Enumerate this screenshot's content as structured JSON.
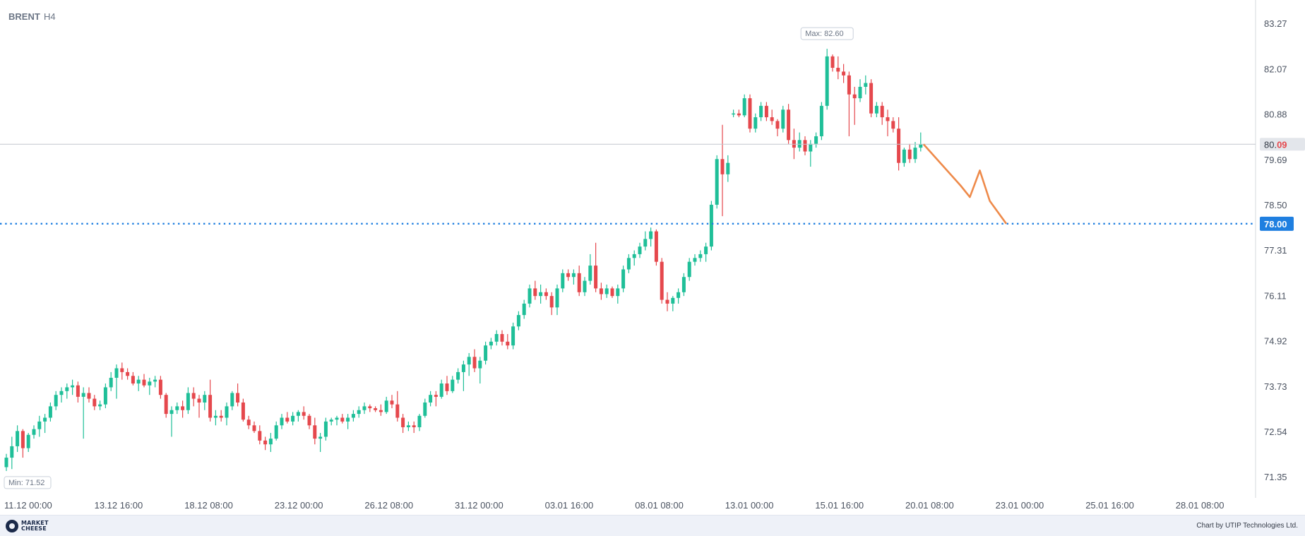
{
  "chart_data": {
    "type": "candlestick",
    "title": "BRENT",
    "timeframe": "H4",
    "y_axis": {
      "ticks": [
        "83.27",
        "82.07",
        "80.88",
        "79.69",
        "78.50",
        "77.31",
        "76.11",
        "74.92",
        "73.73",
        "72.54",
        "71.35"
      ],
      "range": [
        70.9,
        83.7
      ]
    },
    "x_axis": {
      "ticks": [
        "11.12 00:00",
        "13.12 16:00",
        "18.12 08:00",
        "23.12 00:00",
        "26.12 08:00",
        "31.12 00:00",
        "03.01 16:00",
        "08.01 08:00",
        "13.01 00:00",
        "15.01 16:00",
        "20.01 08:00",
        "23.01 00:00",
        "25.01 16:00",
        "28.01 08:00"
      ]
    },
    "current_price": {
      "label_prefix": "80.",
      "label_suffix": "09",
      "value": 80.09
    },
    "target_level": {
      "label": "78.00",
      "value": 78.0
    },
    "max_label": "Max: 82.60",
    "min_label": "Min: 71.52",
    "forecast_path": [
      [
        80.09,
        0
      ],
      [
        79.0,
        0.45
      ],
      [
        78.7,
        0.56
      ],
      [
        79.4,
        0.68
      ],
      [
        78.6,
        0.8
      ],
      [
        78.0,
        1.0
      ]
    ],
    "colors": {
      "up": "#1fbf98",
      "down": "#e5484d",
      "target": "#1f7fe0",
      "forecast": "#ee8a4a",
      "grid": "#d6d9de"
    },
    "candles": [
      [
        71.6,
        71.95,
        71.5,
        71.85
      ],
      [
        71.85,
        72.4,
        71.55,
        72.15
      ],
      [
        72.15,
        72.7,
        72.0,
        72.55
      ],
      [
        72.55,
        72.6,
        71.85,
        72.1
      ],
      [
        72.1,
        72.5,
        72.0,
        72.45
      ],
      [
        72.45,
        72.7,
        72.35,
        72.6
      ],
      [
        72.6,
        72.95,
        72.4,
        72.8
      ],
      [
        72.8,
        73.0,
        72.5,
        72.9
      ],
      [
        72.9,
        73.3,
        72.8,
        73.2
      ],
      [
        73.2,
        73.6,
        73.1,
        73.5
      ],
      [
        73.5,
        73.7,
        73.3,
        73.6
      ],
      [
        73.6,
        73.8,
        73.4,
        73.7
      ],
      [
        73.7,
        73.9,
        73.5,
        73.75
      ],
      [
        73.75,
        73.85,
        73.3,
        73.45
      ],
      [
        73.45,
        73.7,
        72.35,
        73.55
      ],
      [
        73.55,
        73.7,
        73.3,
        73.4
      ],
      [
        73.4,
        73.5,
        73.1,
        73.2
      ],
      [
        73.2,
        73.35,
        73.1,
        73.25
      ],
      [
        73.25,
        73.8,
        73.15,
        73.7
      ],
      [
        73.7,
        74.1,
        73.6,
        73.95
      ],
      [
        73.95,
        74.3,
        73.4,
        74.2
      ],
      [
        74.2,
        74.35,
        73.9,
        74.1
      ],
      [
        74.1,
        74.2,
        73.9,
        74.0
      ],
      [
        74.0,
        74.1,
        73.75,
        73.8
      ],
      [
        73.8,
        74.0,
        73.6,
        73.9
      ],
      [
        73.9,
        74.05,
        73.7,
        73.75
      ],
      [
        73.75,
        73.95,
        73.5,
        73.85
      ],
      [
        73.85,
        74.0,
        73.7,
        73.9
      ],
      [
        73.9,
        74.0,
        73.4,
        73.5
      ],
      [
        73.5,
        73.55,
        72.9,
        73.0
      ],
      [
        73.0,
        73.2,
        72.4,
        73.1
      ],
      [
        73.1,
        73.3,
        73.0,
        73.2
      ],
      [
        73.2,
        73.35,
        72.9,
        73.1
      ],
      [
        73.1,
        73.7,
        73.0,
        73.55
      ],
      [
        73.55,
        73.7,
        73.2,
        73.4
      ],
      [
        73.4,
        73.5,
        72.9,
        73.3
      ],
      [
        73.3,
        73.6,
        73.1,
        73.5
      ],
      [
        73.5,
        73.9,
        72.8,
        72.9
      ],
      [
        72.9,
        73.1,
        72.7,
        72.95
      ],
      [
        72.95,
        73.1,
        72.8,
        72.9
      ],
      [
        72.9,
        73.3,
        72.7,
        73.2
      ],
      [
        73.2,
        73.6,
        73.1,
        73.55
      ],
      [
        73.55,
        73.8,
        73.2,
        73.3
      ],
      [
        73.3,
        73.4,
        72.8,
        72.85
      ],
      [
        72.85,
        72.95,
        72.6,
        72.7
      ],
      [
        72.7,
        72.8,
        72.5,
        72.55
      ],
      [
        72.55,
        72.7,
        72.2,
        72.3
      ],
      [
        72.3,
        72.4,
        72.05,
        72.2
      ],
      [
        72.2,
        72.5,
        72.0,
        72.35
      ],
      [
        72.35,
        72.8,
        72.3,
        72.7
      ],
      [
        72.7,
        73.0,
        72.6,
        72.9
      ],
      [
        72.9,
        73.05,
        72.75,
        72.8
      ],
      [
        72.8,
        73.05,
        72.7,
        72.95
      ],
      [
        72.95,
        73.1,
        72.8,
        73.05
      ],
      [
        73.05,
        73.2,
        72.85,
        72.95
      ],
      [
        72.95,
        73.0,
        72.6,
        72.7
      ],
      [
        72.7,
        72.9,
        72.2,
        72.35
      ],
      [
        72.35,
        72.5,
        72.0,
        72.4
      ],
      [
        72.4,
        72.9,
        72.3,
        72.8
      ],
      [
        72.8,
        72.9,
        72.7,
        72.85
      ],
      [
        72.85,
        72.95,
        72.7,
        72.9
      ],
      [
        72.9,
        73.0,
        72.75,
        72.8
      ],
      [
        72.8,
        73.0,
        72.6,
        72.9
      ],
      [
        72.9,
        73.1,
        72.8,
        73.0
      ],
      [
        73.0,
        73.2,
        72.9,
        73.1
      ],
      [
        73.1,
        73.3,
        73.0,
        73.2
      ],
      [
        73.2,
        73.25,
        73.05,
        73.15
      ],
      [
        73.15,
        73.2,
        73.05,
        73.1
      ],
      [
        73.1,
        73.25,
        72.95,
        73.05
      ],
      [
        73.05,
        73.45,
        73.0,
        73.35
      ],
      [
        73.35,
        73.5,
        73.15,
        73.25
      ],
      [
        73.25,
        73.6,
        72.8,
        72.9
      ],
      [
        72.9,
        73.0,
        72.5,
        72.65
      ],
      [
        72.65,
        72.8,
        72.55,
        72.7
      ],
      [
        72.7,
        72.8,
        72.5,
        72.65
      ],
      [
        72.65,
        73.0,
        72.55,
        72.95
      ],
      [
        72.95,
        73.4,
        72.9,
        73.3
      ],
      [
        73.3,
        73.6,
        73.2,
        73.5
      ],
      [
        73.5,
        73.6,
        73.2,
        73.45
      ],
      [
        73.45,
        73.9,
        73.4,
        73.8
      ],
      [
        73.8,
        74.0,
        73.5,
        73.6
      ],
      [
        73.6,
        74.0,
        73.55,
        73.9
      ],
      [
        73.9,
        74.2,
        73.8,
        74.1
      ],
      [
        74.1,
        74.4,
        73.6,
        74.3
      ],
      [
        74.3,
        74.6,
        74.0,
        74.5
      ],
      [
        74.5,
        74.7,
        74.1,
        74.2
      ],
      [
        74.2,
        74.5,
        73.8,
        74.4
      ],
      [
        74.4,
        74.9,
        74.3,
        74.8
      ],
      [
        74.8,
        75.0,
        74.7,
        74.9
      ],
      [
        74.9,
        75.2,
        74.8,
        75.1
      ],
      [
        75.1,
        75.2,
        74.8,
        74.9
      ],
      [
        74.9,
        75.1,
        74.7,
        74.8
      ],
      [
        74.8,
        75.4,
        74.7,
        75.3
      ],
      [
        75.3,
        75.7,
        75.2,
        75.6
      ],
      [
        75.6,
        76.0,
        75.5,
        75.9
      ],
      [
        75.9,
        76.4,
        75.8,
        76.3
      ],
      [
        76.3,
        76.5,
        76.0,
        76.1
      ],
      [
        76.1,
        76.4,
        75.9,
        76.2
      ],
      [
        76.2,
        76.3,
        76.0,
        76.1
      ],
      [
        76.1,
        76.2,
        75.6,
        75.8
      ],
      [
        75.8,
        76.4,
        75.6,
        76.3
      ],
      [
        76.3,
        76.8,
        76.2,
        76.7
      ],
      [
        76.7,
        76.8,
        76.5,
        76.6
      ],
      [
        76.6,
        76.8,
        76.4,
        76.7
      ],
      [
        76.7,
        76.9,
        76.1,
        76.2
      ],
      [
        76.2,
        76.6,
        76.1,
        76.5
      ],
      [
        76.5,
        77.2,
        76.4,
        76.9
      ],
      [
        76.9,
        77.5,
        76.2,
        76.3
      ],
      [
        76.3,
        76.45,
        76.0,
        76.15
      ],
      [
        76.15,
        76.4,
        76.05,
        76.3
      ],
      [
        76.3,
        76.35,
        76.05,
        76.1
      ],
      [
        76.1,
        76.4,
        75.9,
        76.3
      ],
      [
        76.3,
        76.9,
        76.2,
        76.8
      ],
      [
        76.8,
        77.2,
        76.7,
        77.1
      ],
      [
        77.1,
        77.3,
        76.9,
        77.2
      ],
      [
        77.2,
        77.5,
        77.1,
        77.4
      ],
      [
        77.4,
        77.8,
        77.3,
        77.6
      ],
      [
        77.6,
        77.9,
        77.4,
        77.8
      ],
      [
        77.8,
        77.85,
        76.9,
        77.0
      ],
      [
        77.0,
        77.1,
        75.9,
        76.0
      ],
      [
        76.0,
        76.2,
        75.7,
        75.9
      ],
      [
        75.9,
        76.1,
        75.7,
        76.05
      ],
      [
        76.05,
        76.3,
        75.9,
        76.2
      ],
      [
        76.2,
        76.7,
        76.1,
        76.6
      ],
      [
        76.6,
        77.1,
        76.5,
        77.0
      ],
      [
        77.0,
        77.2,
        76.9,
        77.1
      ],
      [
        77.1,
        77.3,
        77.0,
        77.2
      ],
      [
        77.2,
        77.5,
        77.0,
        77.4
      ],
      [
        77.4,
        78.6,
        77.3,
        78.5
      ],
      [
        78.5,
        79.8,
        78.4,
        79.7
      ],
      [
        79.7,
        80.6,
        78.2,
        79.3
      ],
      [
        79.3,
        79.8,
        79.1,
        79.6
      ],
      [
        80.9,
        81.0,
        80.8,
        80.9
      ],
      [
        80.9,
        81.0,
        80.8,
        80.85
      ],
      [
        80.85,
        81.4,
        80.8,
        81.3
      ],
      [
        81.3,
        81.4,
        80.4,
        80.5
      ],
      [
        80.5,
        80.9,
        80.4,
        80.8
      ],
      [
        80.8,
        81.2,
        80.7,
        81.1
      ],
      [
        81.1,
        81.2,
        80.7,
        80.8
      ],
      [
        80.8,
        81.0,
        80.6,
        80.7
      ],
      [
        80.7,
        80.75,
        80.3,
        80.5
      ],
      [
        80.5,
        81.1,
        80.4,
        81.0
      ],
      [
        81.0,
        81.15,
        80.1,
        80.2
      ],
      [
        80.2,
        80.5,
        79.7,
        80.0
      ],
      [
        80.0,
        80.4,
        79.9,
        80.2
      ],
      [
        80.2,
        80.3,
        79.8,
        79.9
      ],
      [
        79.9,
        80.2,
        79.5,
        80.1
      ],
      [
        80.1,
        80.4,
        80.0,
        80.3
      ],
      [
        80.3,
        81.2,
        80.2,
        81.1
      ],
      [
        81.1,
        82.6,
        81.0,
        82.4
      ],
      [
        82.4,
        82.45,
        82.0,
        82.1
      ],
      [
        82.1,
        82.4,
        81.8,
        82.0
      ],
      [
        82.0,
        82.2,
        81.7,
        81.9
      ],
      [
        81.9,
        82.0,
        80.3,
        81.4
      ],
      [
        81.4,
        81.6,
        80.6,
        81.3
      ],
      [
        81.3,
        81.8,
        81.2,
        81.6
      ],
      [
        81.6,
        81.9,
        81.4,
        81.7
      ],
      [
        81.7,
        81.8,
        80.8,
        80.9
      ],
      [
        80.9,
        81.2,
        80.8,
        81.1
      ],
      [
        81.1,
        81.2,
        80.6,
        80.8
      ],
      [
        80.8,
        81.0,
        80.3,
        80.7
      ],
      [
        80.7,
        80.8,
        80.4,
        80.5
      ],
      [
        80.5,
        80.8,
        79.4,
        79.6
      ],
      [
        79.6,
        80.0,
        79.5,
        79.95
      ],
      [
        79.95,
        80.1,
        79.6,
        79.7
      ],
      [
        79.7,
        80.15,
        79.6,
        80.0
      ],
      [
        80.0,
        80.4,
        79.9,
        80.09
      ]
    ]
  }
}
